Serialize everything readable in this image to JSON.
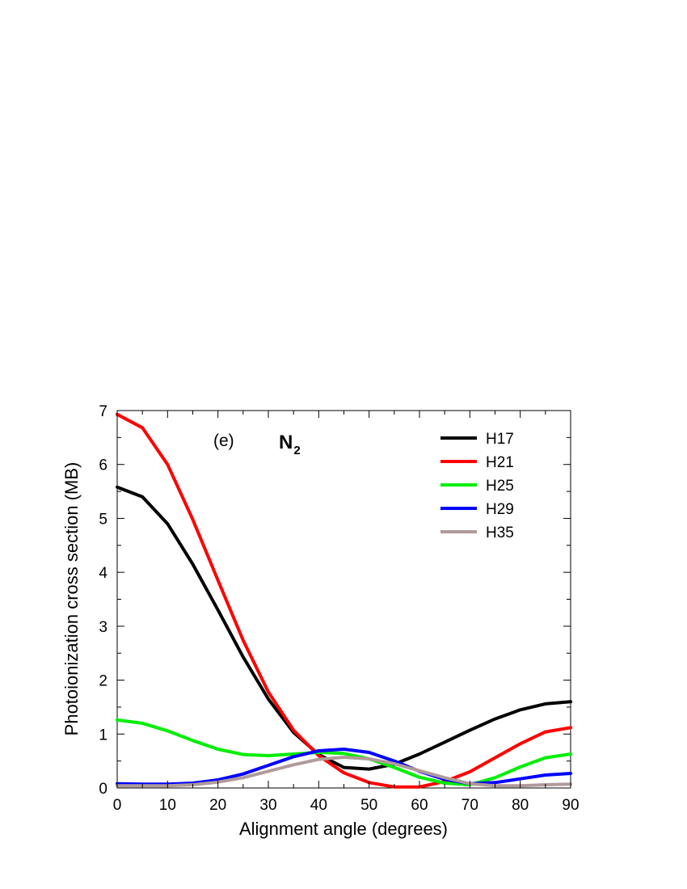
{
  "chart_data": {
    "type": "line",
    "xlabel": "Alignment angle (degrees)",
    "ylabel": "Photoionization cross section  (MB)",
    "xlim": [
      0,
      90
    ],
    "ylim": [
      0,
      7
    ],
    "x_ticks": [
      0,
      10,
      20,
      30,
      40,
      50,
      60,
      70,
      80,
      90
    ],
    "y_ticks": [
      0,
      1,
      2,
      3,
      4,
      5,
      6,
      7
    ],
    "x_tick_labels": [
      "0",
      "10",
      "20",
      "30",
      "40",
      "50",
      "60",
      "70",
      "80",
      "90"
    ],
    "y_tick_labels": [
      "0",
      "1",
      "2",
      "3",
      "4",
      "5",
      "6",
      "7"
    ],
    "grid": false,
    "legend_position": "top-right",
    "annotations": {
      "panel_label": "(e)",
      "molecule_main": "N",
      "molecule_subscript": "2"
    },
    "x": [
      0,
      5,
      10,
      15,
      20,
      25,
      30,
      35,
      40,
      45,
      50,
      55,
      60,
      65,
      70,
      75,
      80,
      85,
      90
    ],
    "series": [
      {
        "name": "H17",
        "color": "#000000",
        "values": [
          5.58,
          5.4,
          4.9,
          4.15,
          3.3,
          2.43,
          1.65,
          1.03,
          0.62,
          0.38,
          0.35,
          0.44,
          0.63,
          0.85,
          1.07,
          1.28,
          1.45,
          1.56,
          1.6
        ]
      },
      {
        "name": "H21",
        "color": "#ff0000",
        "values": [
          6.93,
          6.68,
          6.0,
          4.98,
          3.85,
          2.74,
          1.78,
          1.07,
          0.6,
          0.28,
          0.1,
          0.02,
          0.02,
          0.12,
          0.3,
          0.56,
          0.82,
          1.04,
          1.12
        ]
      },
      {
        "name": "H25",
        "color": "#00ee00",
        "values": [
          1.26,
          1.2,
          1.06,
          0.88,
          0.72,
          0.62,
          0.6,
          0.63,
          0.66,
          0.64,
          0.54,
          0.38,
          0.2,
          0.09,
          0.06,
          0.19,
          0.39,
          0.56,
          0.63
        ]
      },
      {
        "name": "H29",
        "color": "#0000ff",
        "values": [
          0.08,
          0.07,
          0.07,
          0.09,
          0.15,
          0.26,
          0.42,
          0.58,
          0.69,
          0.72,
          0.66,
          0.5,
          0.31,
          0.16,
          0.08,
          0.1,
          0.17,
          0.24,
          0.27
        ]
      },
      {
        "name": "H35",
        "color": "#b09a9a",
        "values": [
          0.04,
          0.04,
          0.04,
          0.06,
          0.11,
          0.19,
          0.31,
          0.43,
          0.53,
          0.57,
          0.54,
          0.45,
          0.32,
          0.19,
          0.08,
          0.04,
          0.04,
          0.06,
          0.07
        ]
      }
    ]
  }
}
